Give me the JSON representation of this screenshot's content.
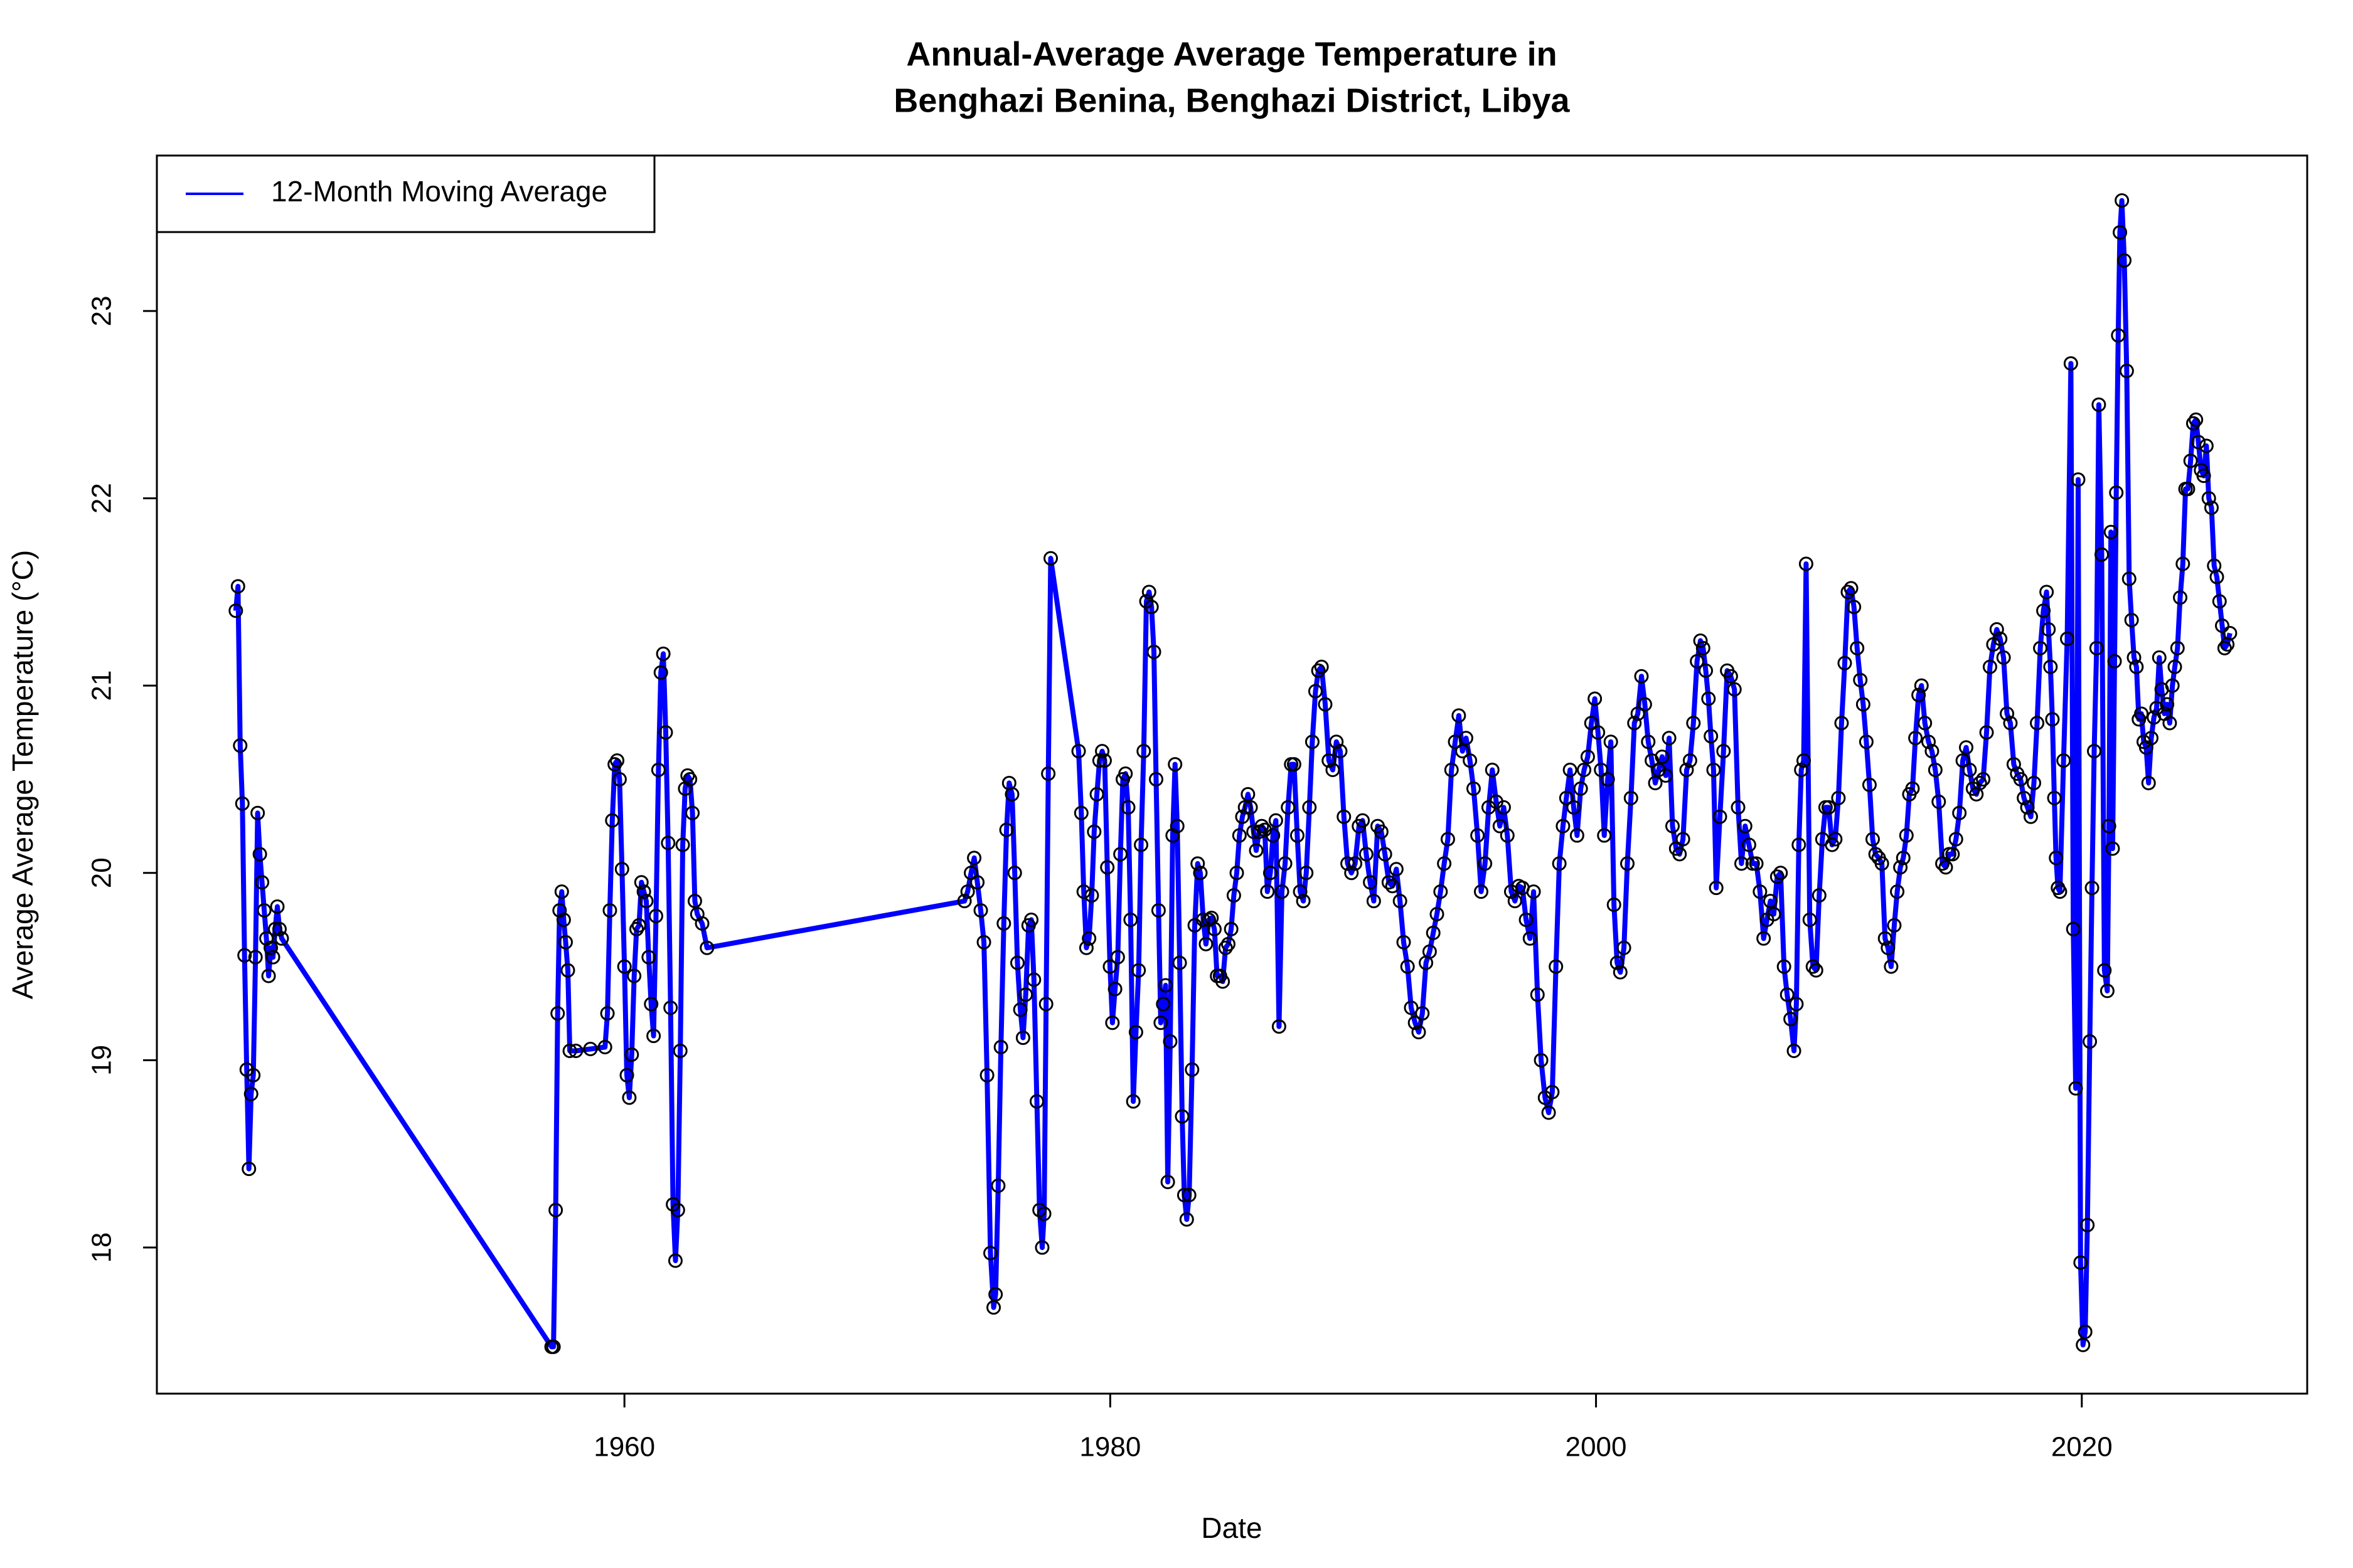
{
  "chart_data": {
    "type": "line",
    "title": "Annual-Average Average Temperature in",
    "subtitle": "Benghazi Benina, Benghazi District, Libya",
    "x_label": "Date",
    "y_label": "Average Average Temperature (°C)",
    "xlim": [
      1940.75,
      2029.28
    ],
    "ylim": [
      17.22,
      23.83
    ],
    "xticks": [
      1960,
      1980,
      2000,
      2020
    ],
    "yticks": [
      18,
      19,
      20,
      21,
      22,
      23
    ],
    "legend_position": "top-left",
    "point_color": "#000000",
    "x": [
      1944.0,
      1944.09,
      1944.18,
      1944.27,
      1944.36,
      1944.45,
      1944.54,
      1944.63,
      1944.72,
      1944.81,
      1944.9,
      1944.99,
      1945.08,
      1945.17,
      1945.26,
      1945.35,
      1945.44,
      1945.53,
      1945.62,
      1945.71,
      1945.8,
      1945.89,
      1957.0,
      1957.08,
      1957.17,
      1957.25,
      1957.33,
      1957.42,
      1957.5,
      1957.58,
      1957.67,
      1957.75,
      1958.0,
      1958.6,
      1959.2,
      1959.3,
      1959.4,
      1959.5,
      1959.6,
      1959.7,
      1959.8,
      1959.9,
      1960.0,
      1960.1,
      1960.2,
      1960.3,
      1960.4,
      1960.5,
      1960.6,
      1960.7,
      1960.8,
      1960.9,
      1961.0,
      1961.1,
      1961.2,
      1961.3,
      1961.4,
      1961.5,
      1961.6,
      1961.7,
      1961.8,
      1961.9,
      1962.0,
      1962.1,
      1962.2,
      1962.3,
      1962.4,
      1962.5,
      1962.6,
      1962.7,
      1962.8,
      1962.9,
      1963.0,
      1963.2,
      1963.4,
      1974.0,
      1974.13,
      1974.27,
      1974.4,
      1974.53,
      1974.67,
      1974.8,
      1974.93,
      1975.07,
      1975.2,
      1975.28,
      1975.39,
      1975.5,
      1975.62,
      1975.73,
      1975.84,
      1975.96,
      1976.07,
      1976.18,
      1976.3,
      1976.41,
      1976.52,
      1976.64,
      1976.75,
      1976.86,
      1976.98,
      1977.09,
      1977.2,
      1977.28,
      1977.36,
      1977.45,
      1977.55,
      1978.7,
      1978.81,
      1978.91,
      1979.02,
      1979.13,
      1979.24,
      1979.34,
      1979.45,
      1979.56,
      1979.67,
      1979.77,
      1979.88,
      1979.99,
      1980.09,
      1980.2,
      1980.31,
      1980.42,
      1980.52,
      1980.63,
      1980.74,
      1980.84,
      1980.95,
      1981.06,
      1981.17,
      1981.27,
      1981.38,
      1981.49,
      1981.6,
      1981.7,
      1981.8,
      1981.89,
      1981.99,
      1982.08,
      1982.18,
      1982.28,
      1982.37,
      1982.47,
      1982.57,
      1982.67,
      1982.76,
      1982.86,
      1982.96,
      1983.05,
      1983.15,
      1983.25,
      1983.37,
      1983.48,
      1983.6,
      1983.71,
      1983.83,
      1983.94,
      1984.06,
      1984.17,
      1984.29,
      1984.4,
      1984.52,
      1984.63,
      1984.75,
      1984.86,
      1984.98,
      1985.09,
      1985.21,
      1985.32,
      1985.44,
      1985.55,
      1985.67,
      1985.78,
      1985.9,
      1986.01,
      1986.13,
      1986.24,
      1986.36,
      1986.47,
      1986.59,
      1986.7,
      1986.82,
      1986.95,
      1987.07,
      1987.2,
      1987.32,
      1987.45,
      1987.57,
      1987.7,
      1987.82,
      1987.95,
      1988.07,
      1988.2,
      1988.32,
      1988.45,
      1988.57,
      1988.7,
      1988.85,
      1989.0,
      1989.16,
      1989.31,
      1989.47,
      1989.62,
      1989.77,
      1989.93,
      1990.08,
      1990.24,
      1990.39,
      1990.54,
      1990.7,
      1990.85,
      1991.01,
      1991.16,
      1991.31,
      1991.47,
      1991.62,
      1991.78,
      1991.93,
      1992.08,
      1992.24,
      1992.39,
      1992.55,
      1992.7,
      1992.85,
      1993.0,
      1993.15,
      1993.3,
      1993.45,
      1993.6,
      1993.75,
      1993.9,
      1994.05,
      1994.2,
      1994.35,
      1994.5,
      1994.65,
      1994.81,
      1994.96,
      1995.12,
      1995.27,
      1995.43,
      1995.58,
      1995.73,
      1995.89,
      1996.04,
      1996.2,
      1996.35,
      1996.51,
      1996.66,
      1996.82,
      1996.97,
      1997.12,
      1997.28,
      1997.43,
      1997.59,
      1997.74,
      1997.9,
      1998.05,
      1998.2,
      1998.35,
      1998.49,
      1998.64,
      1998.78,
      1998.93,
      1999.08,
      1999.22,
      1999.37,
      1999.51,
      1999.66,
      1999.81,
      1999.95,
      2000.08,
      2000.21,
      2000.34,
      2000.48,
      2000.61,
      2000.74,
      2000.87,
      2001.0,
      2001.15,
      2001.29,
      2001.44,
      2001.58,
      2001.72,
      2001.87,
      2002.01,
      2002.15,
      2002.3,
      2002.44,
      2002.58,
      2002.72,
      2002.87,
      2003.01,
      2003.15,
      2003.3,
      2003.44,
      2003.58,
      2003.73,
      2003.87,
      2004.01,
      2004.16,
      2004.3,
      2004.41,
      2004.52,
      2004.63,
      2004.73,
      2004.84,
      2004.95,
      2005.1,
      2005.25,
      2005.4,
      2005.55,
      2005.7,
      2005.85,
      2005.99,
      2006.14,
      2006.3,
      2006.45,
      2006.6,
      2006.75,
      2006.9,
      2007.04,
      2007.18,
      2007.32,
      2007.46,
      2007.6,
      2007.74,
      2007.87,
      2008.01,
      2008.15,
      2008.25,
      2008.35,
      2008.45,
      2008.55,
      2008.65,
      2008.8,
      2008.93,
      2009.06,
      2009.19,
      2009.32,
      2009.45,
      2009.58,
      2009.72,
      2009.85,
      2009.98,
      2010.11,
      2010.24,
      2010.37,
      2010.5,
      2010.62,
      2010.75,
      2010.88,
      2011.0,
      2011.13,
      2011.26,
      2011.39,
      2011.51,
      2011.64,
      2011.77,
      2011.9,
      2012.02,
      2012.15,
      2012.28,
      2012.4,
      2012.53,
      2012.65,
      2012.78,
      2012.9,
      2013.03,
      2013.15,
      2013.28,
      2013.4,
      2013.54,
      2013.69,
      2013.83,
      2013.97,
      2014.11,
      2014.26,
      2014.4,
      2014.54,
      2014.68,
      2014.82,
      2014.96,
      2015.1,
      2015.24,
      2015.38,
      2015.52,
      2015.66,
      2015.8,
      2015.94,
      2016.08,
      2016.22,
      2016.36,
      2016.5,
      2016.64,
      2016.78,
      2016.92,
      2017.06,
      2017.2,
      2017.34,
      2017.48,
      2017.62,
      2017.76,
      2017.9,
      2018.03,
      2018.16,
      2018.29,
      2018.42,
      2018.55,
      2018.63,
      2018.71,
      2018.79,
      2018.87,
      2018.94,
      2019.02,
      2019.1,
      2019.25,
      2019.4,
      2019.55,
      2019.65,
      2019.75,
      2019.85,
      2019.95,
      2020.05,
      2020.14,
      2020.23,
      2020.33,
      2020.42,
      2020.51,
      2020.61,
      2020.7,
      2020.82,
      2020.93,
      2021.05,
      2021.12,
      2021.2,
      2021.27,
      2021.35,
      2021.42,
      2021.5,
      2021.57,
      2021.65,
      2021.75,
      2021.85,
      2021.95,
      2022.05,
      2022.15,
      2022.25,
      2022.35,
      2022.45,
      2022.55,
      2022.65,
      2022.75,
      2022.86,
      2022.97,
      2023.08,
      2023.19,
      2023.29,
      2023.4,
      2023.51,
      2023.62,
      2023.73,
      2023.83,
      2023.94,
      2024.05,
      2024.16,
      2024.27,
      2024.37,
      2024.48,
      2024.59,
      2024.7,
      2024.8,
      2024.91,
      2025.02,
      2025.13,
      2025.23,
      2025.34,
      2025.45,
      2025.56,
      2025.67,
      2025.78,
      2025.88,
      2025.99,
      2026.1
    ],
    "series": [
      {
        "name": "12-Month Moving Average",
        "color": "#0000ff",
        "values": [
          21.4,
          21.53,
          20.68,
          20.37,
          19.56,
          18.95,
          18.42,
          18.82,
          18.92,
          19.55,
          20.32,
          20.1,
          19.95,
          19.8,
          19.65,
          19.45,
          19.6,
          19.55,
          19.7,
          19.82,
          19.7,
          19.65,
          17.47,
          17.47,
          18.2,
          19.25,
          19.8,
          19.9,
          19.75,
          19.63,
          19.48,
          19.05,
          19.05,
          19.06,
          19.07,
          19.25,
          19.8,
          20.28,
          20.58,
          20.6,
          20.5,
          20.02,
          19.5,
          18.92,
          18.8,
          19.03,
          19.45,
          19.7,
          19.72,
          19.95,
          19.9,
          19.85,
          19.55,
          19.3,
          19.13,
          19.77,
          20.55,
          21.07,
          21.17,
          20.75,
          20.16,
          19.28,
          18.23,
          17.93,
          18.2,
          19.05,
          20.15,
          20.45,
          20.52,
          20.5,
          20.32,
          19.85,
          19.78,
          19.73,
          19.6,
          19.85,
          19.9,
          20.0,
          20.08,
          19.95,
          19.8,
          19.63,
          18.92,
          17.97,
          17.68,
          17.75,
          18.33,
          19.07,
          19.73,
          20.23,
          20.48,
          20.42,
          20.0,
          19.52,
          19.27,
          19.12,
          19.35,
          19.72,
          19.75,
          19.43,
          18.78,
          18.2,
          18.0,
          18.18,
          19.3,
          20.53,
          21.68,
          20.65,
          20.32,
          19.9,
          19.6,
          19.65,
          19.88,
          20.22,
          20.42,
          20.6,
          20.65,
          20.6,
          20.03,
          19.5,
          19.2,
          19.38,
          19.55,
          20.1,
          20.5,
          20.53,
          20.35,
          19.75,
          18.78,
          19.15,
          19.48,
          20.15,
          20.65,
          21.45,
          21.5,
          21.42,
          21.18,
          20.5,
          19.8,
          19.2,
          19.3,
          19.4,
          18.35,
          19.1,
          20.2,
          20.58,
          20.25,
          19.52,
          18.7,
          18.28,
          18.15,
          18.28,
          18.95,
          19.72,
          20.05,
          20.0,
          19.75,
          19.62,
          19.75,
          19.76,
          19.7,
          19.45,
          19.45,
          19.42,
          19.6,
          19.62,
          19.7,
          19.88,
          20.0,
          20.2,
          20.3,
          20.35,
          20.42,
          20.35,
          20.22,
          20.12,
          20.22,
          20.25,
          20.23,
          19.9,
          20.0,
          20.2,
          20.28,
          19.18,
          19.9,
          20.05,
          20.35,
          20.58,
          20.58,
          20.2,
          19.9,
          19.85,
          20.0,
          20.35,
          20.7,
          20.97,
          21.08,
          21.1,
          20.9,
          20.6,
          20.55,
          20.7,
          20.65,
          20.3,
          20.05,
          20.0,
          20.05,
          20.25,
          20.28,
          20.1,
          19.95,
          19.85,
          20.25,
          20.22,
          20.1,
          19.95,
          19.93,
          20.02,
          19.85,
          19.63,
          19.5,
          19.28,
          19.2,
          19.15,
          19.25,
          19.52,
          19.58,
          19.68,
          19.78,
          19.9,
          20.05,
          20.18,
          20.55,
          20.7,
          20.84,
          20.65,
          20.72,
          20.6,
          20.45,
          20.2,
          19.9,
          20.05,
          20.35,
          20.55,
          20.38,
          20.25,
          20.35,
          20.2,
          19.9,
          19.85,
          19.93,
          19.92,
          19.75,
          19.65,
          19.9,
          19.35,
          19.0,
          18.8,
          18.72,
          18.83,
          19.5,
          20.05,
          20.25,
          20.4,
          20.55,
          20.35,
          20.2,
          20.45,
          20.55,
          20.62,
          20.8,
          20.93,
          20.75,
          20.55,
          20.2,
          20.5,
          20.7,
          19.83,
          19.52,
          19.47,
          19.6,
          20.05,
          20.4,
          20.8,
          20.85,
          21.05,
          20.9,
          20.7,
          20.6,
          20.48,
          20.55,
          20.62,
          20.52,
          20.72,
          20.25,
          20.13,
          20.1,
          20.18,
          20.55,
          20.6,
          20.8,
          21.13,
          21.24,
          21.2,
          21.08,
          20.93,
          20.73,
          20.55,
          19.92,
          20.3,
          20.65,
          21.08,
          21.05,
          20.98,
          20.35,
          20.05,
          20.25,
          20.15,
          20.05,
          20.05,
          19.9,
          19.65,
          19.75,
          19.85,
          19.78,
          19.98,
          20.0,
          19.5,
          19.35,
          19.22,
          19.05,
          19.3,
          20.15,
          20.55,
          20.6,
          21.65,
          19.75,
          19.5,
          19.48,
          19.88,
          20.18,
          20.35,
          20.35,
          20.15,
          20.18,
          20.4,
          20.8,
          21.12,
          21.5,
          21.52,
          21.42,
          21.2,
          21.03,
          20.9,
          20.7,
          20.47,
          20.18,
          20.1,
          20.08,
          20.05,
          19.65,
          19.6,
          19.5,
          19.72,
          19.9,
          20.03,
          20.08,
          20.2,
          20.42,
          20.45,
          20.72,
          20.95,
          21.0,
          20.8,
          20.7,
          20.65,
          20.55,
          20.38,
          20.05,
          20.03,
          20.1,
          20.1,
          20.18,
          20.32,
          20.6,
          20.67,
          20.55,
          20.45,
          20.42,
          20.48,
          20.5,
          20.75,
          21.1,
          21.22,
          21.3,
          21.25,
          21.15,
          20.85,
          20.8,
          20.58,
          20.53,
          20.5,
          20.4,
          20.35,
          20.3,
          20.48,
          20.8,
          21.2,
          21.4,
          21.5,
          21.3,
          21.1,
          20.82,
          20.4,
          20.08,
          19.92,
          19.9,
          20.6,
          21.25,
          22.72,
          19.7,
          18.85,
          22.1,
          17.92,
          17.48,
          17.55,
          18.12,
          19.1,
          19.92,
          20.65,
          21.2,
          22.5,
          21.7,
          19.48,
          19.37,
          20.25,
          21.82,
          20.13,
          21.13,
          22.03,
          22.87,
          23.42,
          23.59,
          23.27,
          22.68,
          21.57,
          21.35,
          21.15,
          21.1,
          20.82,
          20.85,
          20.7,
          20.67,
          20.48,
          20.72,
          20.83,
          20.88,
          21.15,
          20.98,
          20.85,
          20.9,
          20.8,
          21.0,
          21.1,
          21.2,
          21.47,
          21.65,
          22.05,
          22.05,
          22.2,
          22.4,
          22.42,
          22.3,
          22.15,
          22.12,
          22.28,
          22.0,
          21.95,
          21.64,
          21.58,
          21.45,
          21.32,
          21.2,
          21.22,
          21.28
        ]
      }
    ]
  }
}
